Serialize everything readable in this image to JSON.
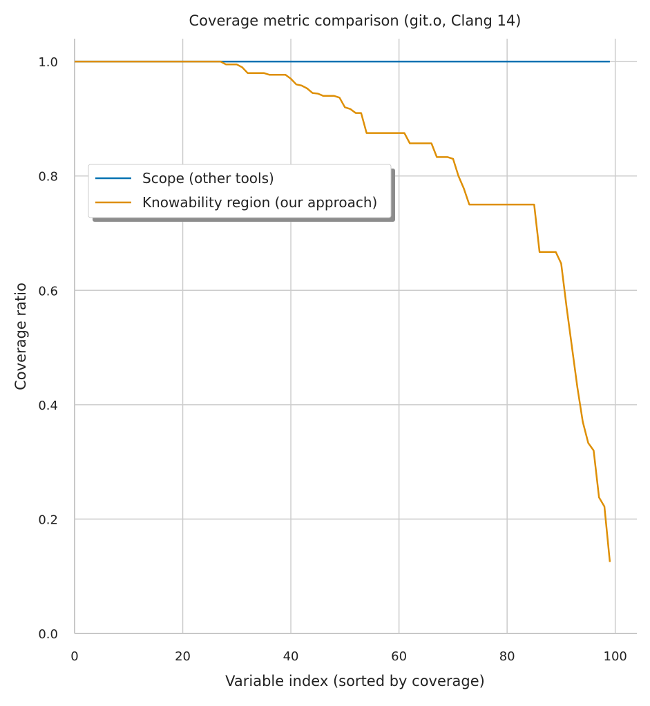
{
  "colors": {
    "scope": "#0072b2",
    "knowability": "#de8f05",
    "grid": "#cccccc",
    "axis": "#c8c8c8"
  },
  "chart_data": {
    "type": "line",
    "title": "Coverage metric comparison (git.o, Clang 14)",
    "xlabel": "Variable index (sorted by coverage)",
    "ylabel": "Coverage ratio",
    "xlim": [
      0,
      104
    ],
    "ylim": [
      0,
      1.04
    ],
    "xticks": [
      0,
      20,
      40,
      60,
      80,
      100
    ],
    "yticks": [
      0.0,
      0.2,
      0.4,
      0.6,
      0.8,
      1.0
    ],
    "xtick_labels": [
      "0",
      "20",
      "40",
      "60",
      "80",
      "100"
    ],
    "ytick_labels": [
      "0.0",
      "0.2",
      "0.4",
      "0.6",
      "0.8",
      "1.0"
    ],
    "grid": true,
    "legend": "upper-left, shadowed box",
    "series": [
      {
        "name": "Scope (other tools)",
        "x": [
          0,
          99
        ],
        "y": [
          1.0,
          1.0
        ]
      },
      {
        "name": "Knowability region (our approach)",
        "x": [
          0,
          27,
          28,
          30,
          31,
          32,
          34,
          35,
          36,
          38,
          39,
          40,
          41,
          42,
          43,
          44,
          45,
          46,
          47,
          48,
          49,
          50,
          51,
          52,
          53,
          54,
          55,
          58,
          60,
          61,
          62,
          64,
          66,
          67,
          69,
          70,
          71,
          72,
          73,
          75,
          80,
          85,
          86,
          88,
          89,
          90,
          91,
          92,
          93,
          94,
          95,
          96,
          97,
          98,
          99
        ],
        "y": [
          1.0,
          1.0,
          0.995,
          0.995,
          0.99,
          0.98,
          0.98,
          0.98,
          0.977,
          0.977,
          0.977,
          0.97,
          0.96,
          0.958,
          0.953,
          0.945,
          0.944,
          0.94,
          0.94,
          0.94,
          0.937,
          0.92,
          0.917,
          0.91,
          0.91,
          0.875,
          0.875,
          0.875,
          0.875,
          0.875,
          0.857,
          0.857,
          0.857,
          0.833,
          0.833,
          0.83,
          0.8,
          0.778,
          0.75,
          0.75,
          0.75,
          0.75,
          0.667,
          0.667,
          0.667,
          0.647,
          0.57,
          0.5,
          0.43,
          0.37,
          0.333,
          0.32,
          0.238,
          0.222,
          0.125
        ]
      }
    ]
  }
}
